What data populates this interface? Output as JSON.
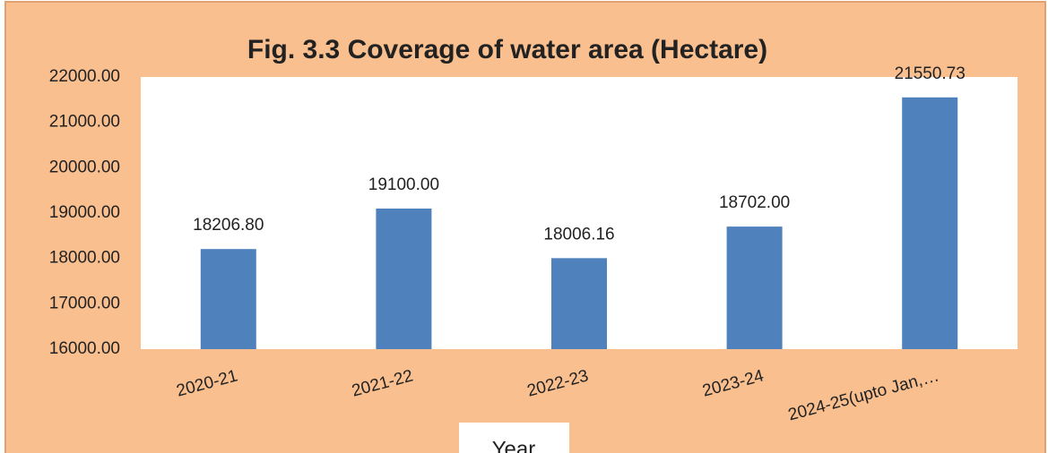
{
  "chart_data": {
    "type": "bar",
    "title": "Fig. 3.3 Coverage of water area (Hectare)",
    "x_label": "Year",
    "categories": [
      "2020-21",
      "2021-22",
      "2022-23",
      "2023-24",
      "2024-25(upto Jan,…"
    ],
    "values": [
      18206.8,
      19100,
      18006.16,
      18702,
      21550.73
    ],
    "value_labels": [
      "18206.80",
      "19100.00",
      "18006.16",
      "18702.00",
      "21550.73"
    ],
    "color": "#4f81bd",
    "ylim": [
      16000,
      22000
    ],
    "yticks": [
      {
        "value": 16000,
        "label": "16000.00"
      },
      {
        "value": 17000,
        "label": "17000.00"
      },
      {
        "value": 18000,
        "label": "18000.00"
      },
      {
        "value": 19000,
        "label": "19000.00"
      },
      {
        "value": 20000,
        "label": "20000.00"
      },
      {
        "value": 21000,
        "label": "21000.00"
      },
      {
        "value": 22000,
        "label": "22000.00"
      }
    ],
    "grid": false
  }
}
